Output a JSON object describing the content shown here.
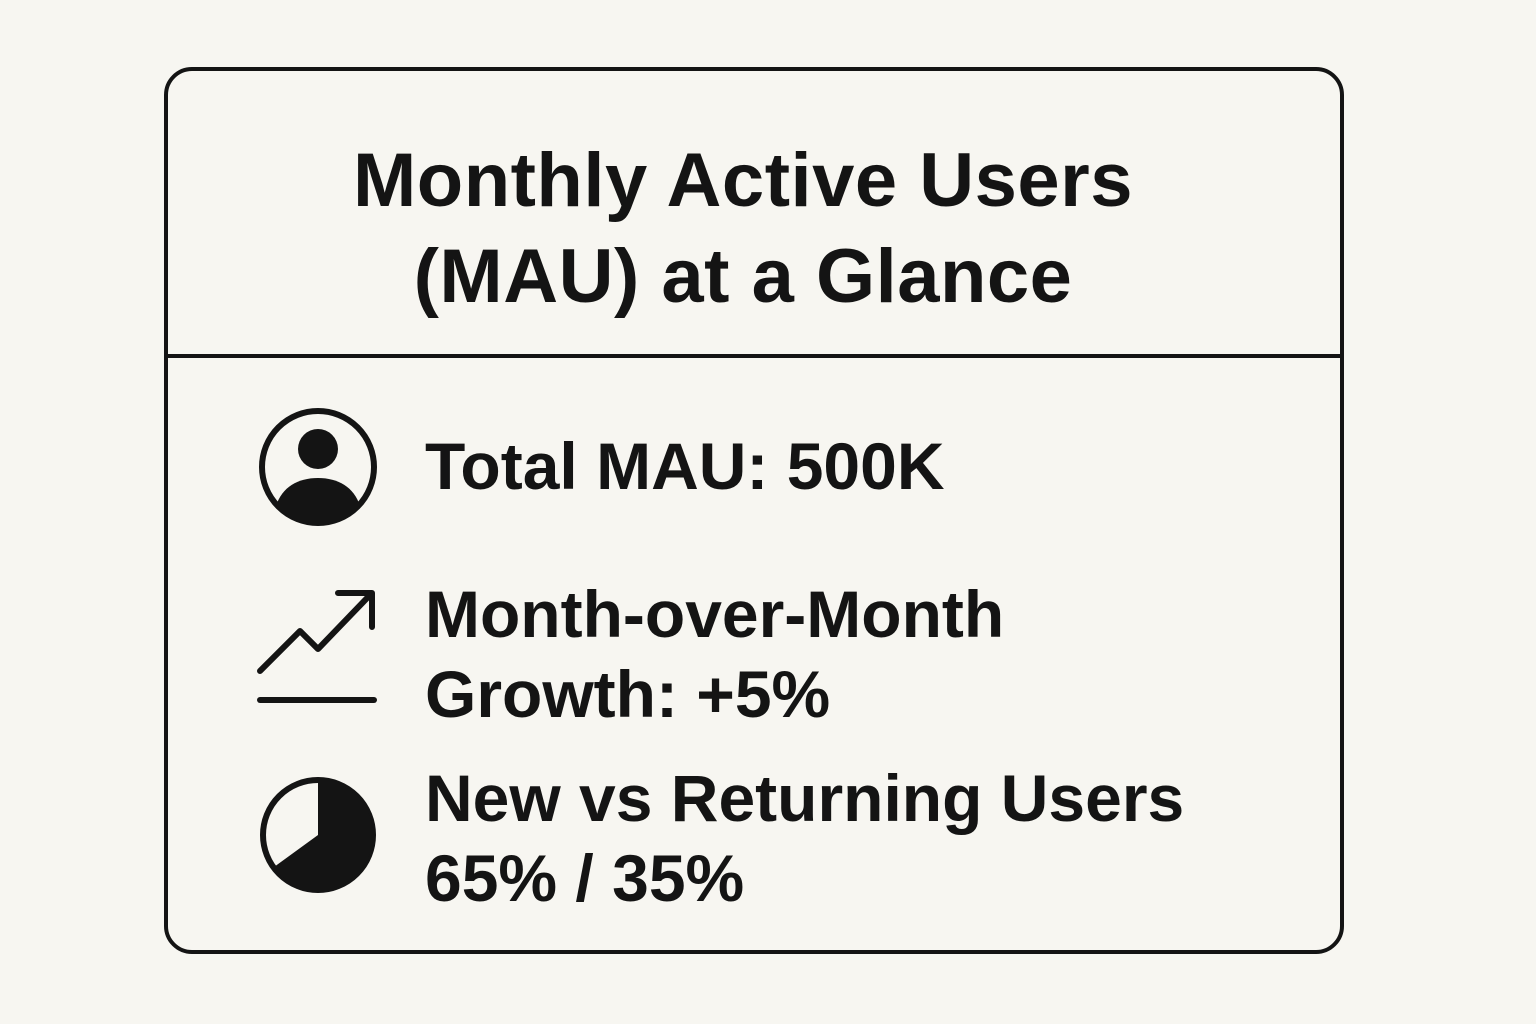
{
  "title": {
    "line1": "Monthly Active Users",
    "line2": "(MAU) at a Glance"
  },
  "metrics": [
    {
      "icon": "user-circle-icon",
      "line1": "Total MAU: 500K"
    },
    {
      "icon": "trend-up-icon",
      "line1": "Month-over-Month",
      "line2": "Growth: +5%"
    },
    {
      "icon": "pie-chart-icon",
      "line1": "New vs Returning Users",
      "line2": "65% / 35%",
      "new_share": 0.65
    }
  ],
  "colors": {
    "background": "#f7f6f1",
    "ink": "#141414"
  }
}
